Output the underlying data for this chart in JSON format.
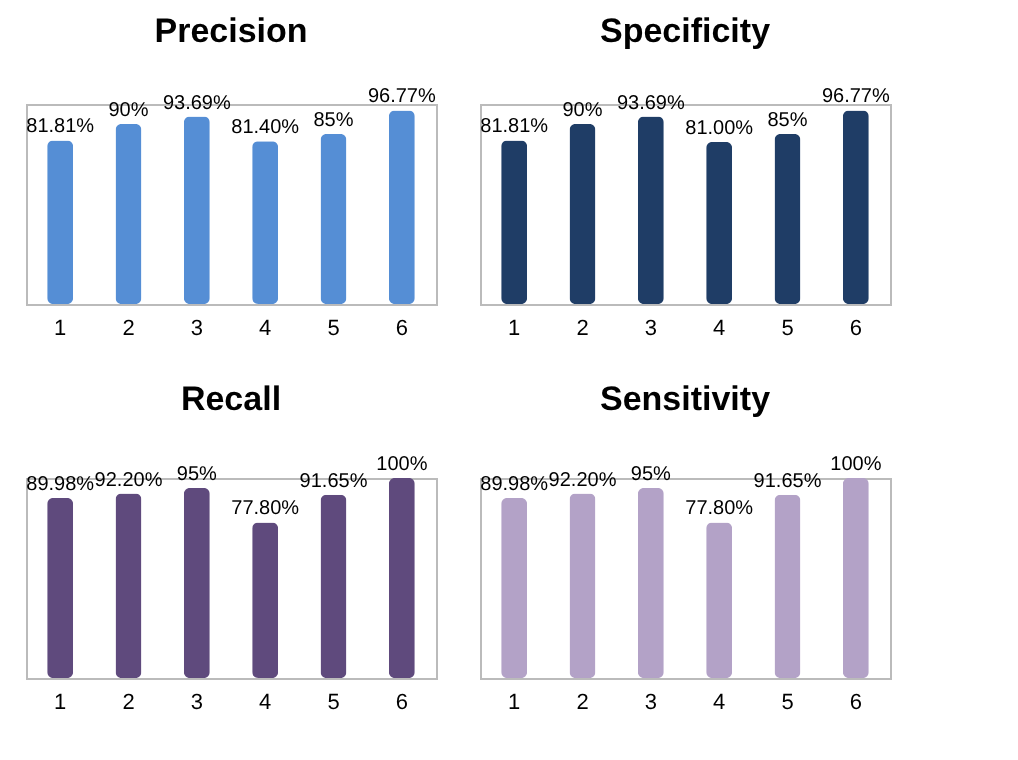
{
  "chart_data": [
    {
      "type": "bar",
      "title": "Precision",
      "categories": [
        "1",
        "2",
        "3",
        "4",
        "5",
        "6"
      ],
      "series": [
        {
          "color": "#558ed5",
          "values": [
            81.81,
            90,
            93.69,
            81.4,
            85,
            96.77
          ],
          "value_labels": [
            "81.81%",
            "90%",
            "93.69%",
            "81.40%",
            "85%",
            "96.77%"
          ]
        }
      ]
    },
    {
      "type": "bar",
      "title": "Specificity",
      "categories": [
        "1",
        "2",
        "3",
        "4",
        "5",
        "6"
      ],
      "series": [
        {
          "color": "#1f3d66",
          "values": [
            81.81,
            90,
            93.69,
            81.0,
            85,
            96.77
          ],
          "value_labels": [
            "81.81%",
            "90%",
            "93.69%",
            "81.00%",
            "85%",
            "96.77%"
          ]
        }
      ]
    },
    {
      "type": "bar",
      "title": "Recall",
      "categories": [
        "1",
        "2",
        "3",
        "4",
        "5",
        "6"
      ],
      "series": [
        {
          "color": "#5f4a7d",
          "values": [
            89.98,
            92.2,
            95,
            77.8,
            91.65,
            100
          ],
          "value_labels": [
            "89.98%",
            "92.20%",
            "95%",
            "77.80%",
            "91.65%",
            "100%"
          ]
        }
      ]
    },
    {
      "type": "bar",
      "title": "Sensitivity",
      "categories": [
        "1",
        "2",
        "3",
        "4",
        "5",
        "6"
      ],
      "series": [
        {
          "color": "#b3a2c7",
          "values": [
            89.98,
            92.2,
            95,
            77.8,
            91.65,
            100
          ],
          "value_labels": [
            "89.98%",
            "92.20%",
            "95%",
            "77.80%",
            "91.65%",
            "100%"
          ]
        }
      ]
    }
  ]
}
